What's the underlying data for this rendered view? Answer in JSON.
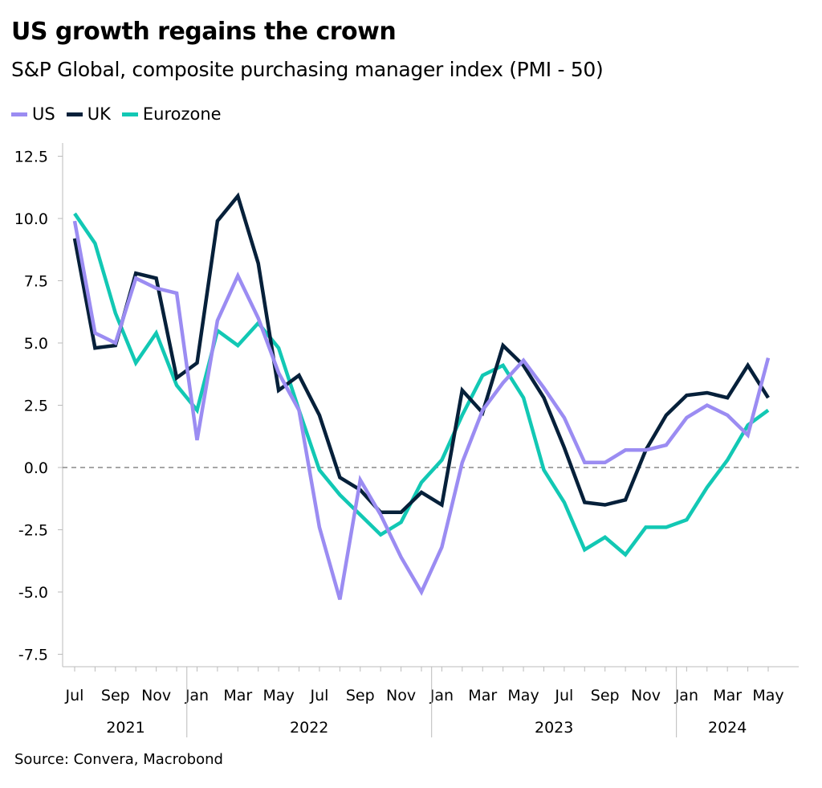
{
  "title": "US growth regains the crown",
  "subtitle": "S&P Global, composite purchasing manager index (PMI - 50)",
  "source": "Source: Convera, Macrobond",
  "chart_data": {
    "type": "line",
    "title": "US growth regains the crown",
    "subtitle": "S&P Global, composite purchasing manager index (PMI - 50)",
    "legend_position": "top-left",
    "grid": false,
    "reference_line": {
      "y": 0,
      "style": "dashed",
      "color": "#888888"
    },
    "ylim": [
      -8.5,
      13.5
    ],
    "yticks": [
      -7.5,
      -5.0,
      -2.5,
      0.0,
      2.5,
      5.0,
      7.5,
      10.0,
      12.5
    ],
    "ytick_labels": [
      "-7.5",
      "-5.0",
      "-2.5",
      "0.0",
      "2.5",
      "5.0",
      "7.5",
      "10.0",
      "12.5"
    ],
    "x": [
      "2021-07",
      "2021-08",
      "2021-09",
      "2021-10",
      "2021-11",
      "2021-12",
      "2022-01",
      "2022-02",
      "2022-03",
      "2022-04",
      "2022-05",
      "2022-06",
      "2022-07",
      "2022-08",
      "2022-09",
      "2022-10",
      "2022-11",
      "2022-12",
      "2023-01",
      "2023-02",
      "2023-03",
      "2023-04",
      "2023-05",
      "2023-06",
      "2023-07",
      "2023-08",
      "2023-09",
      "2023-10",
      "2023-11",
      "2023-12",
      "2024-01",
      "2024-02",
      "2024-03",
      "2024-04",
      "2024-05"
    ],
    "xtick_labels": [
      {
        "index": 0,
        "label": "Jul"
      },
      {
        "index": 2,
        "label": "Sep"
      },
      {
        "index": 4,
        "label": "Nov"
      },
      {
        "index": 6,
        "label": "Jan"
      },
      {
        "index": 8,
        "label": "Mar"
      },
      {
        "index": 10,
        "label": "May"
      },
      {
        "index": 12,
        "label": "Jul"
      },
      {
        "index": 14,
        "label": "Sep"
      },
      {
        "index": 16,
        "label": "Nov"
      },
      {
        "index": 18,
        "label": "Jan"
      },
      {
        "index": 20,
        "label": "Mar"
      },
      {
        "index": 22,
        "label": "May"
      },
      {
        "index": 24,
        "label": "Jul"
      },
      {
        "index": 26,
        "label": "Sep"
      },
      {
        "index": 28,
        "label": "Nov"
      },
      {
        "index": 30,
        "label": "Jan"
      },
      {
        "index": 32,
        "label": "Mar"
      },
      {
        "index": 34,
        "label": "May"
      }
    ],
    "year_labels": [
      {
        "label": "2021",
        "from": 0,
        "to": 5
      },
      {
        "label": "2022",
        "from": 6,
        "to": 17
      },
      {
        "label": "2023",
        "from": 18,
        "to": 29
      },
      {
        "label": "2024",
        "from": 30,
        "to": 34
      }
    ],
    "series": [
      {
        "name": "US",
        "color": "#9b8cf2",
        "values": [
          9.9,
          5.4,
          5.0,
          7.6,
          7.2,
          7.0,
          1.1,
          5.9,
          7.7,
          6.0,
          3.8,
          2.3,
          -2.4,
          -5.3,
          -0.5,
          -1.9,
          -3.6,
          -5.0,
          -3.2,
          0.2,
          2.3,
          3.4,
          4.3,
          3.2,
          2.0,
          0.2,
          0.2,
          0.7,
          0.7,
          0.9,
          2.0,
          2.5,
          2.1,
          1.3,
          4.4
        ]
      },
      {
        "name": "UK",
        "color": "#06203a",
        "values": [
          9.2,
          4.8,
          4.9,
          7.8,
          7.6,
          3.6,
          4.2,
          9.9,
          10.9,
          8.2,
          3.1,
          3.7,
          2.1,
          -0.4,
          -0.9,
          -1.8,
          -1.8,
          -1.0,
          -1.5,
          3.1,
          2.2,
          4.9,
          4.1,
          2.8,
          0.8,
          -1.4,
          -1.5,
          -1.3,
          0.7,
          2.1,
          2.9,
          3.0,
          2.8,
          4.1,
          2.8
        ]
      },
      {
        "name": "Eurozone",
        "color": "#12c8b4",
        "values": [
          10.2,
          9.0,
          6.2,
          4.2,
          5.4,
          3.3,
          2.3,
          5.5,
          4.9,
          5.8,
          4.8,
          2.3,
          -0.1,
          -1.1,
          -1.9,
          -2.7,
          -2.2,
          -0.6,
          0.3,
          2.1,
          3.7,
          4.1,
          2.8,
          -0.1,
          -1.4,
          -3.3,
          -2.8,
          -3.5,
          -2.4,
          -2.4,
          -2.1,
          -0.8,
          0.3,
          1.7,
          2.3
        ]
      }
    ]
  }
}
